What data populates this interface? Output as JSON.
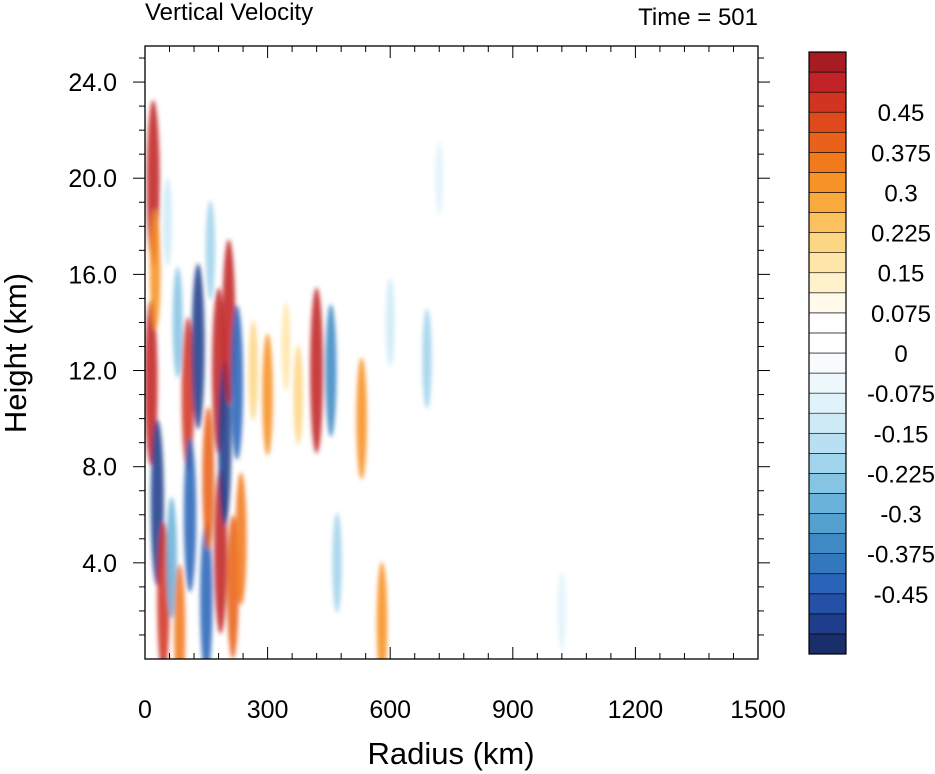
{
  "chart_data": {
    "type": "heatmap",
    "title": "Vertical Velocity",
    "subtitle": "Time = 501",
    "xlabel": "Radius (km)",
    "ylabel": "Height (km)",
    "xlim": [
      0,
      1500
    ],
    "ylim": [
      0,
      25.5
    ],
    "xticks": [
      0,
      300,
      600,
      900,
      1200,
      1500
    ],
    "xtick_labels": [
      "0",
      "300",
      "600",
      "900",
      "1200",
      "1500"
    ],
    "yticks": [
      4,
      8,
      12,
      16,
      20,
      24
    ],
    "ytick_labels": [
      "4.0",
      "8.0",
      "12.0",
      "16.0",
      "20.0",
      "24.0"
    ],
    "colorbar": {
      "levels": [
        -0.5625,
        -0.525,
        -0.4875,
        -0.45,
        -0.4125,
        -0.375,
        -0.3375,
        -0.3,
        -0.2625,
        -0.225,
        -0.1875,
        -0.15,
        -0.1125,
        -0.075,
        -0.0375,
        0,
        0.0375,
        0.075,
        0.1125,
        0.15,
        0.1875,
        0.225,
        0.2625,
        0.3,
        0.3375,
        0.375,
        0.4125,
        0.45,
        0.4875,
        0.525,
        0.5625
      ],
      "labels": [
        "0.45",
        "0.375",
        "0.3",
        "0.225",
        "0.15",
        "0.075",
        "0",
        "-0.075",
        "-0.15",
        "-0.225",
        "-0.3",
        "-0.375",
        "-0.45"
      ],
      "label_values": [
        0.45,
        0.375,
        0.3,
        0.225,
        0.15,
        0.075,
        0,
        -0.075,
        -0.15,
        -0.225,
        -0.3,
        -0.375,
        -0.45
      ],
      "colors": [
        "#1a2e6c",
        "#1f3d8b",
        "#2450a5",
        "#2a64b8",
        "#3377bd",
        "#3f8ac4",
        "#54a0cf",
        "#6bb2da",
        "#86c4e4",
        "#a0d3ec",
        "#b8e0f2",
        "#cdeaf6",
        "#e0f2fa",
        "#eef8fc",
        "#f9fcfe",
        "#ffffff",
        "#ffffff",
        "#fffaea",
        "#fff1cc",
        "#ffe6a8",
        "#fdd684",
        "#fcc15e",
        "#faa93d",
        "#f79226",
        "#f27a1c",
        "#e9611a",
        "#df4a1d",
        "#d23422",
        "#c22326",
        "#a71b22",
        "#8a1c1c"
      ]
    },
    "features": [
      {
        "r": 15,
        "z": 11.5,
        "w": 0.5
      },
      {
        "r": 20,
        "z": 19.8,
        "w": 0.5
      },
      {
        "r": 25,
        "z": 16.2,
        "w": 0.3
      },
      {
        "r": 30,
        "z": 6.5,
        "w": -0.5
      },
      {
        "r": 45,
        "z": 2.5,
        "w": 0.45
      },
      {
        "r": 55,
        "z": 18.2,
        "w": -0.15
      },
      {
        "r": 65,
        "z": 4.2,
        "w": -0.3
      },
      {
        "r": 80,
        "z": 14.0,
        "w": -0.25
      },
      {
        "r": 85,
        "z": 1.2,
        "w": 0.35
      },
      {
        "r": 105,
        "z": 11.0,
        "w": 0.45
      },
      {
        "r": 110,
        "z": 6.0,
        "w": -0.45
      },
      {
        "r": 130,
        "z": 13.0,
        "w": -0.5
      },
      {
        "r": 150,
        "z": 2.5,
        "w": -0.45
      },
      {
        "r": 155,
        "z": 7.5,
        "w": 0.4
      },
      {
        "r": 160,
        "z": 17.0,
        "w": -0.2
      },
      {
        "r": 180,
        "z": 12.0,
        "w": 0.5
      },
      {
        "r": 185,
        "z": 4.5,
        "w": 0.5
      },
      {
        "r": 195,
        "z": 9.0,
        "w": -0.5
      },
      {
        "r": 205,
        "z": 14.0,
        "w": 0.5
      },
      {
        "r": 215,
        "z": 3.0,
        "w": 0.4
      },
      {
        "r": 225,
        "z": 11.5,
        "w": -0.45
      },
      {
        "r": 235,
        "z": 5.0,
        "w": 0.35
      },
      {
        "r": 265,
        "z": 12.0,
        "w": 0.2
      },
      {
        "r": 300,
        "z": 11.0,
        "w": 0.3
      },
      {
        "r": 345,
        "z": 13.0,
        "w": 0.15
      },
      {
        "r": 375,
        "z": 11.0,
        "w": 0.2
      },
      {
        "r": 420,
        "z": 12.0,
        "w": 0.5
      },
      {
        "r": 455,
        "z": 12.0,
        "w": -0.35
      },
      {
        "r": 470,
        "z": 4.0,
        "w": -0.2
      },
      {
        "r": 530,
        "z": 10.0,
        "w": 0.3
      },
      {
        "r": 580,
        "z": 1.5,
        "w": 0.3
      },
      {
        "r": 600,
        "z": 14.0,
        "w": -0.15
      },
      {
        "r": 690,
        "z": 12.5,
        "w": -0.2
      },
      {
        "r": 720,
        "z": 20.0,
        "w": -0.08
      },
      {
        "r": 1020,
        "z": 2.0,
        "w": -0.1
      }
    ]
  }
}
